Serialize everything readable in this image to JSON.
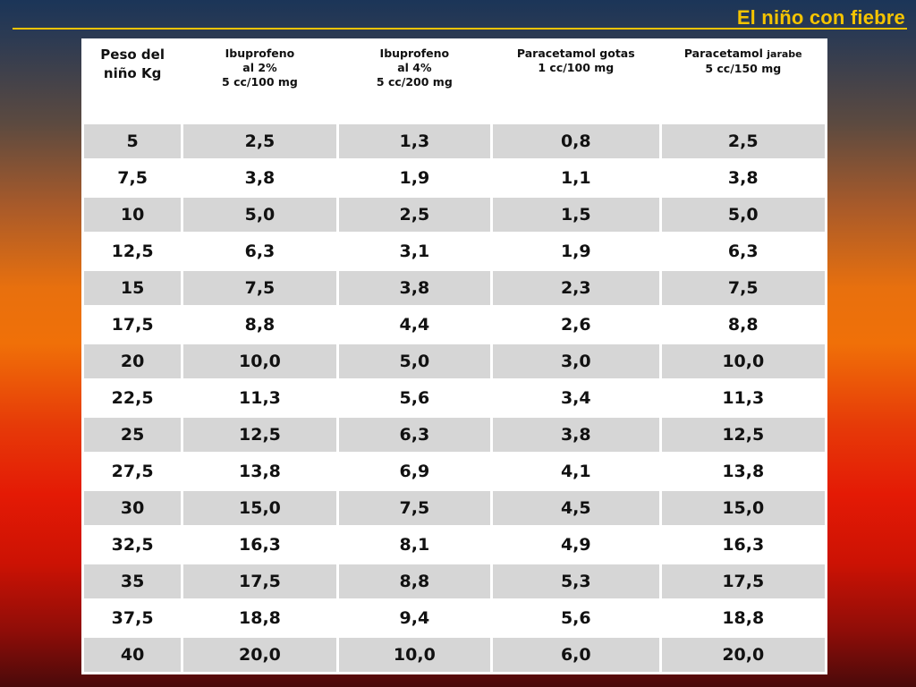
{
  "slide": {
    "title": "El niño con fiebre"
  },
  "table": {
    "headers": [
      {
        "lines": [
          "Peso del",
          "niño Kg"
        ]
      },
      {
        "lines": [
          "Ibuprofeno",
          "al 2%",
          "5 cc/100 mg"
        ]
      },
      {
        "lines": [
          "Ibuprofeno",
          "al 4%",
          "5 cc/200 mg"
        ]
      },
      {
        "lines": [
          "Paracetamol gotas",
          "1 cc/100 mg"
        ]
      },
      {
        "lines": [
          "Paracetamol",
          "5 cc/150 mg"
        ],
        "suffix": "jarabe"
      }
    ],
    "rows": [
      [
        "5",
        "2,5",
        "1,3",
        "0,8",
        "2,5"
      ],
      [
        "7,5",
        "3,8",
        "1,9",
        "1,1",
        "3,8"
      ],
      [
        "10",
        "5,0",
        "2,5",
        "1,5",
        "5,0"
      ],
      [
        "12,5",
        "6,3",
        "3,1",
        "1,9",
        "6,3"
      ],
      [
        "15",
        "7,5",
        "3,8",
        "2,3",
        "7,5"
      ],
      [
        "17,5",
        "8,8",
        "4,4",
        "2,6",
        "8,8"
      ],
      [
        "20",
        "10,0",
        "5,0",
        "3,0",
        "10,0"
      ],
      [
        "22,5",
        "11,3",
        "5,6",
        "3,4",
        "11,3"
      ],
      [
        "25",
        "12,5",
        "6,3",
        "3,8",
        "12,5"
      ],
      [
        "27,5",
        "13,8",
        "6,9",
        "4,1",
        "13,8"
      ],
      [
        "30",
        "15,0",
        "7,5",
        "4,5",
        "15,0"
      ],
      [
        "32,5",
        "16,3",
        "8,1",
        "4,9",
        "16,3"
      ],
      [
        "35",
        "17,5",
        "8,8",
        "5,3",
        "17,5"
      ],
      [
        "37,5",
        "18,8",
        "9,4",
        "5,6",
        "18,8"
      ],
      [
        "40",
        "20,0",
        "10,0",
        "6,0",
        "20,0"
      ]
    ]
  },
  "colors": {
    "title": "#f5c400",
    "row_shade": "#d6d6d6",
    "row_plain": "#ffffff"
  }
}
